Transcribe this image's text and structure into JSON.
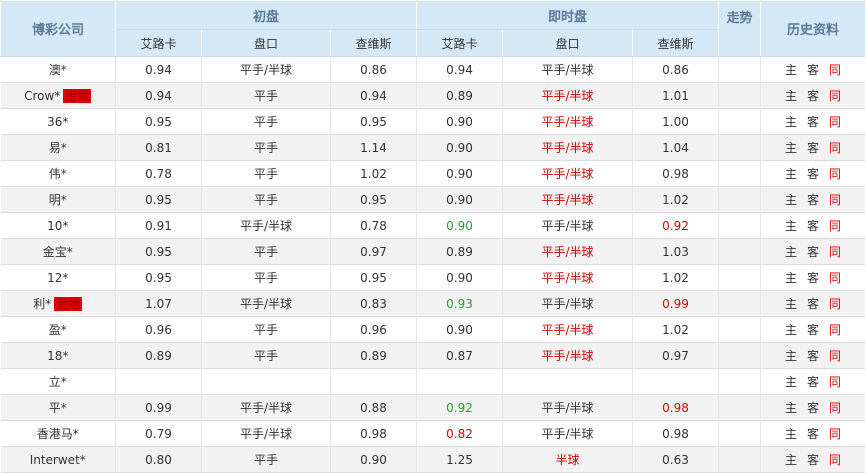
{
  "header": {
    "company": "博彩公司",
    "initial": "初盘",
    "live": "即时盘",
    "trend": "走势",
    "history": "历史资料",
    "sub": [
      "艾路卡",
      "盘口",
      "查维斯",
      "艾路卡",
      "盘口",
      "查维斯"
    ]
  },
  "history_links": {
    "home": "主",
    "away": "客",
    "same": "同"
  },
  "colors": {
    "header_bg": "#d5e8f6",
    "green": "#2e9a2e",
    "red": "#e00000",
    "badge": "#e00000"
  },
  "rows": [
    {
      "company": "澳*",
      "badge": "",
      "i": [
        "0.94",
        "平手/半球",
        "0.86"
      ],
      "l": [
        "0.94",
        "平手/半球",
        "0.86"
      ],
      "c": [
        "",
        "",
        ""
      ]
    },
    {
      "company": "Crow*",
      "badge": "走地",
      "i": [
        "0.94",
        "平手",
        "0.94"
      ],
      "l": [
        "0.89",
        "平手/半球",
        "1.01"
      ],
      "c": [
        "",
        "red",
        ""
      ]
    },
    {
      "company": "36*",
      "badge": "",
      "i": [
        "0.95",
        "平手",
        "0.95"
      ],
      "l": [
        "0.90",
        "平手/半球",
        "1.00"
      ],
      "c": [
        "",
        "red",
        ""
      ]
    },
    {
      "company": "易*",
      "badge": "",
      "i": [
        "0.81",
        "平手",
        "1.14"
      ],
      "l": [
        "0.90",
        "平手/半球",
        "1.04"
      ],
      "c": [
        "",
        "red",
        ""
      ]
    },
    {
      "company": "伟*",
      "badge": "",
      "i": [
        "0.78",
        "平手",
        "1.02"
      ],
      "l": [
        "0.90",
        "平手/半球",
        "0.98"
      ],
      "c": [
        "",
        "red",
        ""
      ]
    },
    {
      "company": "明*",
      "badge": "",
      "i": [
        "0.95",
        "平手",
        "0.95"
      ],
      "l": [
        "0.90",
        "平手/半球",
        "1.02"
      ],
      "c": [
        "",
        "red",
        ""
      ]
    },
    {
      "company": "10*",
      "badge": "",
      "i": [
        "0.91",
        "平手/半球",
        "0.78"
      ],
      "l": [
        "0.90",
        "平手/半球",
        "0.92"
      ],
      "c": [
        "green",
        "",
        "red"
      ]
    },
    {
      "company": "金宝*",
      "badge": "",
      "i": [
        "0.95",
        "平手",
        "0.97"
      ],
      "l": [
        "0.89",
        "平手/半球",
        "1.03"
      ],
      "c": [
        "",
        "red",
        ""
      ]
    },
    {
      "company": "12*",
      "badge": "",
      "i": [
        "0.95",
        "平手",
        "0.95"
      ],
      "l": [
        "0.90",
        "平手/半球",
        "1.02"
      ],
      "c": [
        "",
        "red",
        ""
      ]
    },
    {
      "company": "利*",
      "badge": "走地",
      "i": [
        "1.07",
        "平手/半球",
        "0.83"
      ],
      "l": [
        "0.93",
        "平手/半球",
        "0.99"
      ],
      "c": [
        "green",
        "",
        "red"
      ]
    },
    {
      "company": "盈*",
      "badge": "",
      "i": [
        "0.96",
        "平手",
        "0.96"
      ],
      "l": [
        "0.90",
        "平手/半球",
        "1.02"
      ],
      "c": [
        "",
        "red",
        ""
      ]
    },
    {
      "company": "18*",
      "badge": "",
      "i": [
        "0.89",
        "平手",
        "0.89"
      ],
      "l": [
        "0.87",
        "平手/半球",
        "0.97"
      ],
      "c": [
        "",
        "red",
        ""
      ]
    },
    {
      "company": "立*",
      "badge": "",
      "i": [
        "",
        "",
        ""
      ],
      "l": [
        "",
        "",
        ""
      ],
      "c": [
        "",
        "",
        ""
      ]
    },
    {
      "company": "平*",
      "badge": "",
      "i": [
        "0.99",
        "平手/半球",
        "0.88"
      ],
      "l": [
        "0.92",
        "平手/半球",
        "0.98"
      ],
      "c": [
        "green",
        "",
        "red"
      ]
    },
    {
      "company": "香港马*",
      "badge": "",
      "i": [
        "0.79",
        "平手/半球",
        "0.98"
      ],
      "l": [
        "0.82",
        "平手/半球",
        "0.98"
      ],
      "c": [
        "red",
        "",
        ""
      ]
    },
    {
      "company": "Interwet*",
      "badge": "",
      "i": [
        "0.80",
        "平手",
        "0.90"
      ],
      "l": [
        "1.25",
        "半球",
        "0.63"
      ],
      "c": [
        "",
        "red",
        ""
      ]
    }
  ]
}
